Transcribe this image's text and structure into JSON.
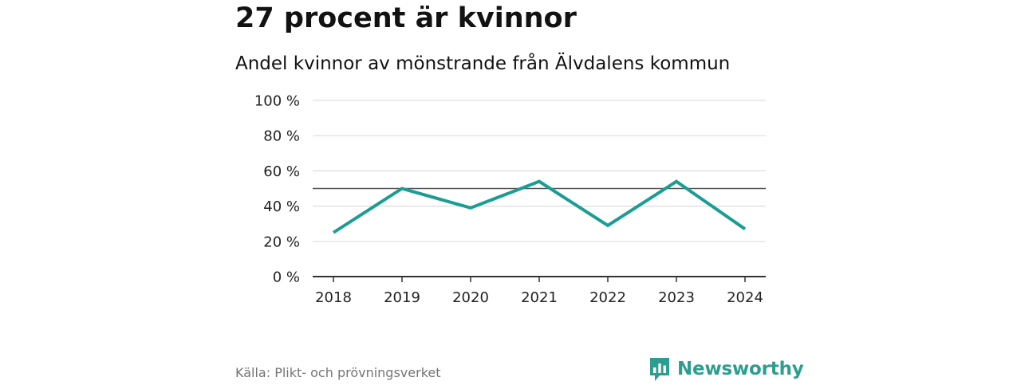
{
  "chart_data": {
    "type": "line",
    "title": "27 procent är kvinnor",
    "subtitle": "Andel kvinnor av mönstrande från Älvdalens kommun",
    "categories": [
      "2018",
      "2019",
      "2020",
      "2021",
      "2022",
      "2023",
      "2024"
    ],
    "series": [
      {
        "name": "Andel kvinnor",
        "values": [
          25,
          50,
          39,
          54,
          29,
          54,
          27
        ],
        "color": "#1a9e94"
      }
    ],
    "reference_line": {
      "value": 50,
      "color": "#555555"
    },
    "ylim": [
      0,
      100
    ],
    "yticks": [
      0,
      20,
      40,
      60,
      80,
      100
    ],
    "ytick_labels": [
      "0 %",
      "20 %",
      "40 %",
      "60 %",
      "80 %",
      "100 %"
    ],
    "xlabel": "",
    "ylabel": "",
    "grid": true,
    "legend": "none"
  },
  "footer": {
    "source": "Källa: Plikt- och prövningsverket",
    "brand_name": "Newsworthy",
    "brand_icon": "bar-chart-speech-bubble-icon"
  },
  "colors": {
    "accent": "#1a9e94",
    "brand": "#2d9d8f",
    "grid": "#dddddd",
    "axis": "#333333"
  }
}
